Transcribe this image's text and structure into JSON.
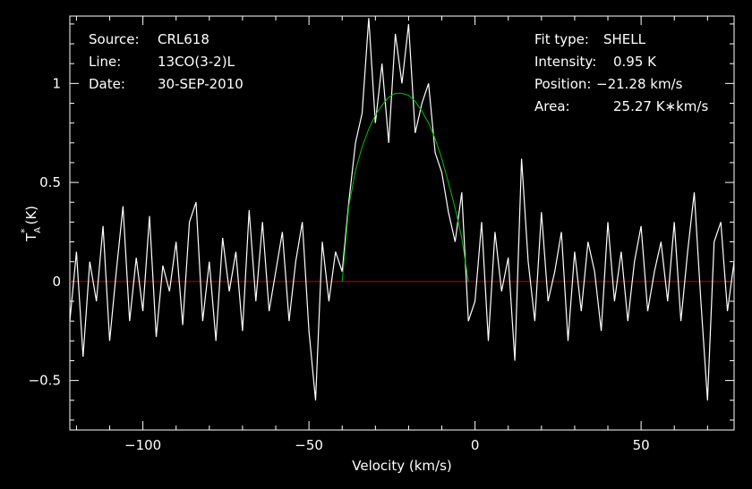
{
  "info_left": {
    "source_label": "Source:",
    "source_value": "CRL618",
    "line_label": "Line:",
    "line_value": "13CO(3-2)L",
    "date_label": "Date:",
    "date_value": "30-SEP-2010"
  },
  "info_right": {
    "fit_label": "Fit type:",
    "fit_value": "SHELL",
    "intensity_label": "Intensity:",
    "intensity_value": "0.95 K",
    "position_label": "Position:",
    "position_value": "−21.28 km/s",
    "area_label": "Area:",
    "area_value": "25.27 K∗km/s"
  },
  "colors": {
    "background": "#000000",
    "spectrum": "#ffffff",
    "fit": "#00c000",
    "baseline": "#c00000",
    "axes": "#ffffff"
  },
  "chart_data": {
    "type": "line",
    "xlabel": "Velocity (km/s)",
    "ylabel": "T",
    "ylabel_sup": "*",
    "ylabel_sub": "A",
    "ylabel_unit": "(K)",
    "xlim": [
      -122,
      78
    ],
    "ylim": [
      -0.75,
      1.34
    ],
    "xticks": [
      -100,
      -50,
      0,
      50
    ],
    "xtick_labels": [
      "−100",
      "−50",
      "0",
      "50"
    ],
    "yticks": [
      -0.5,
      0,
      0.5,
      1
    ],
    "ytick_labels": [
      "−0.5",
      "0",
      "0.5",
      "1"
    ],
    "baseline": {
      "y": 0,
      "x_range": [
        -122,
        78
      ]
    },
    "fit": {
      "name": "SHELL",
      "x": [
        -40,
        -38,
        -36,
        -34,
        -32,
        -30,
        -28,
        -26,
        -24,
        -22,
        -20,
        -18,
        -16,
        -14,
        -12,
        -10,
        -8,
        -6,
        -4,
        -2
      ],
      "y": [
        0,
        0.38,
        0.56,
        0.68,
        0.77,
        0.84,
        0.89,
        0.93,
        0.95,
        0.95,
        0.94,
        0.91,
        0.86,
        0.8,
        0.72,
        0.62,
        0.5,
        0.37,
        0.22,
        0
      ]
    },
    "spectrum": {
      "name": "13CO(3-2)L",
      "x": [
        -122,
        -120,
        -118,
        -116,
        -114,
        -112,
        -110,
        -108,
        -106,
        -104,
        -102,
        -100,
        -98,
        -96,
        -94,
        -92,
        -90,
        -88,
        -86,
        -84,
        -82,
        -80,
        -78,
        -76,
        -74,
        -72,
        -70,
        -68,
        -66,
        -64,
        -62,
        -60,
        -58,
        -56,
        -54,
        -52,
        -50,
        -48,
        -46,
        -44,
        -42,
        -40,
        -38,
        -36,
        -34,
        -32,
        -30,
        -28,
        -26,
        -24,
        -22,
        -20,
        -18,
        -16,
        -14,
        -12,
        -10,
        -8,
        -6,
        -4,
        -2,
        0,
        2,
        4,
        6,
        8,
        10,
        12,
        14,
        16,
        18,
        20,
        22,
        24,
        26,
        28,
        30,
        32,
        34,
        36,
        38,
        40,
        42,
        44,
        46,
        48,
        50,
        52,
        54,
        56,
        58,
        60,
        62,
        64,
        66,
        68,
        70,
        72,
        74,
        76,
        78
      ],
      "y": [
        -0.2,
        0.15,
        -0.38,
        0.1,
        -0.1,
        0.28,
        -0.3,
        0.05,
        0.38,
        -0.2,
        0.12,
        -0.15,
        0.33,
        -0.28,
        0.08,
        -0.05,
        0.2,
        -0.22,
        0.3,
        0.4,
        -0.2,
        0.1,
        -0.3,
        0.22,
        -0.05,
        0.15,
        -0.25,
        0.36,
        -0.1,
        0.3,
        -0.15,
        0.05,
        0.25,
        -0.2,
        0.1,
        0.3,
        -0.25,
        -0.6,
        0.2,
        -0.1,
        0.15,
        0.05,
        0.4,
        0.7,
        0.85,
        1.33,
        0.8,
        1.1,
        0.7,
        1.25,
        1.0,
        1.3,
        0.75,
        0.9,
        1.0,
        0.65,
        0.55,
        0.35,
        0.2,
        0.45,
        -0.2,
        -0.1,
        0.3,
        -0.3,
        0.25,
        -0.05,
        0.12,
        -0.4,
        0.62,
        0.1,
        -0.2,
        0.35,
        -0.1,
        0.05,
        0.25,
        -0.3,
        0.15,
        -0.15,
        0.2,
        0.05,
        -0.25,
        0.3,
        -0.1,
        0.15,
        -0.2,
        0.1,
        0.28,
        -0.15,
        0.05,
        0.2,
        -0.1,
        0.3,
        -0.2,
        0.15,
        0.45,
        -0.1,
        -0.6,
        0.2,
        0.3,
        -0.15,
        0.1
      ]
    }
  }
}
